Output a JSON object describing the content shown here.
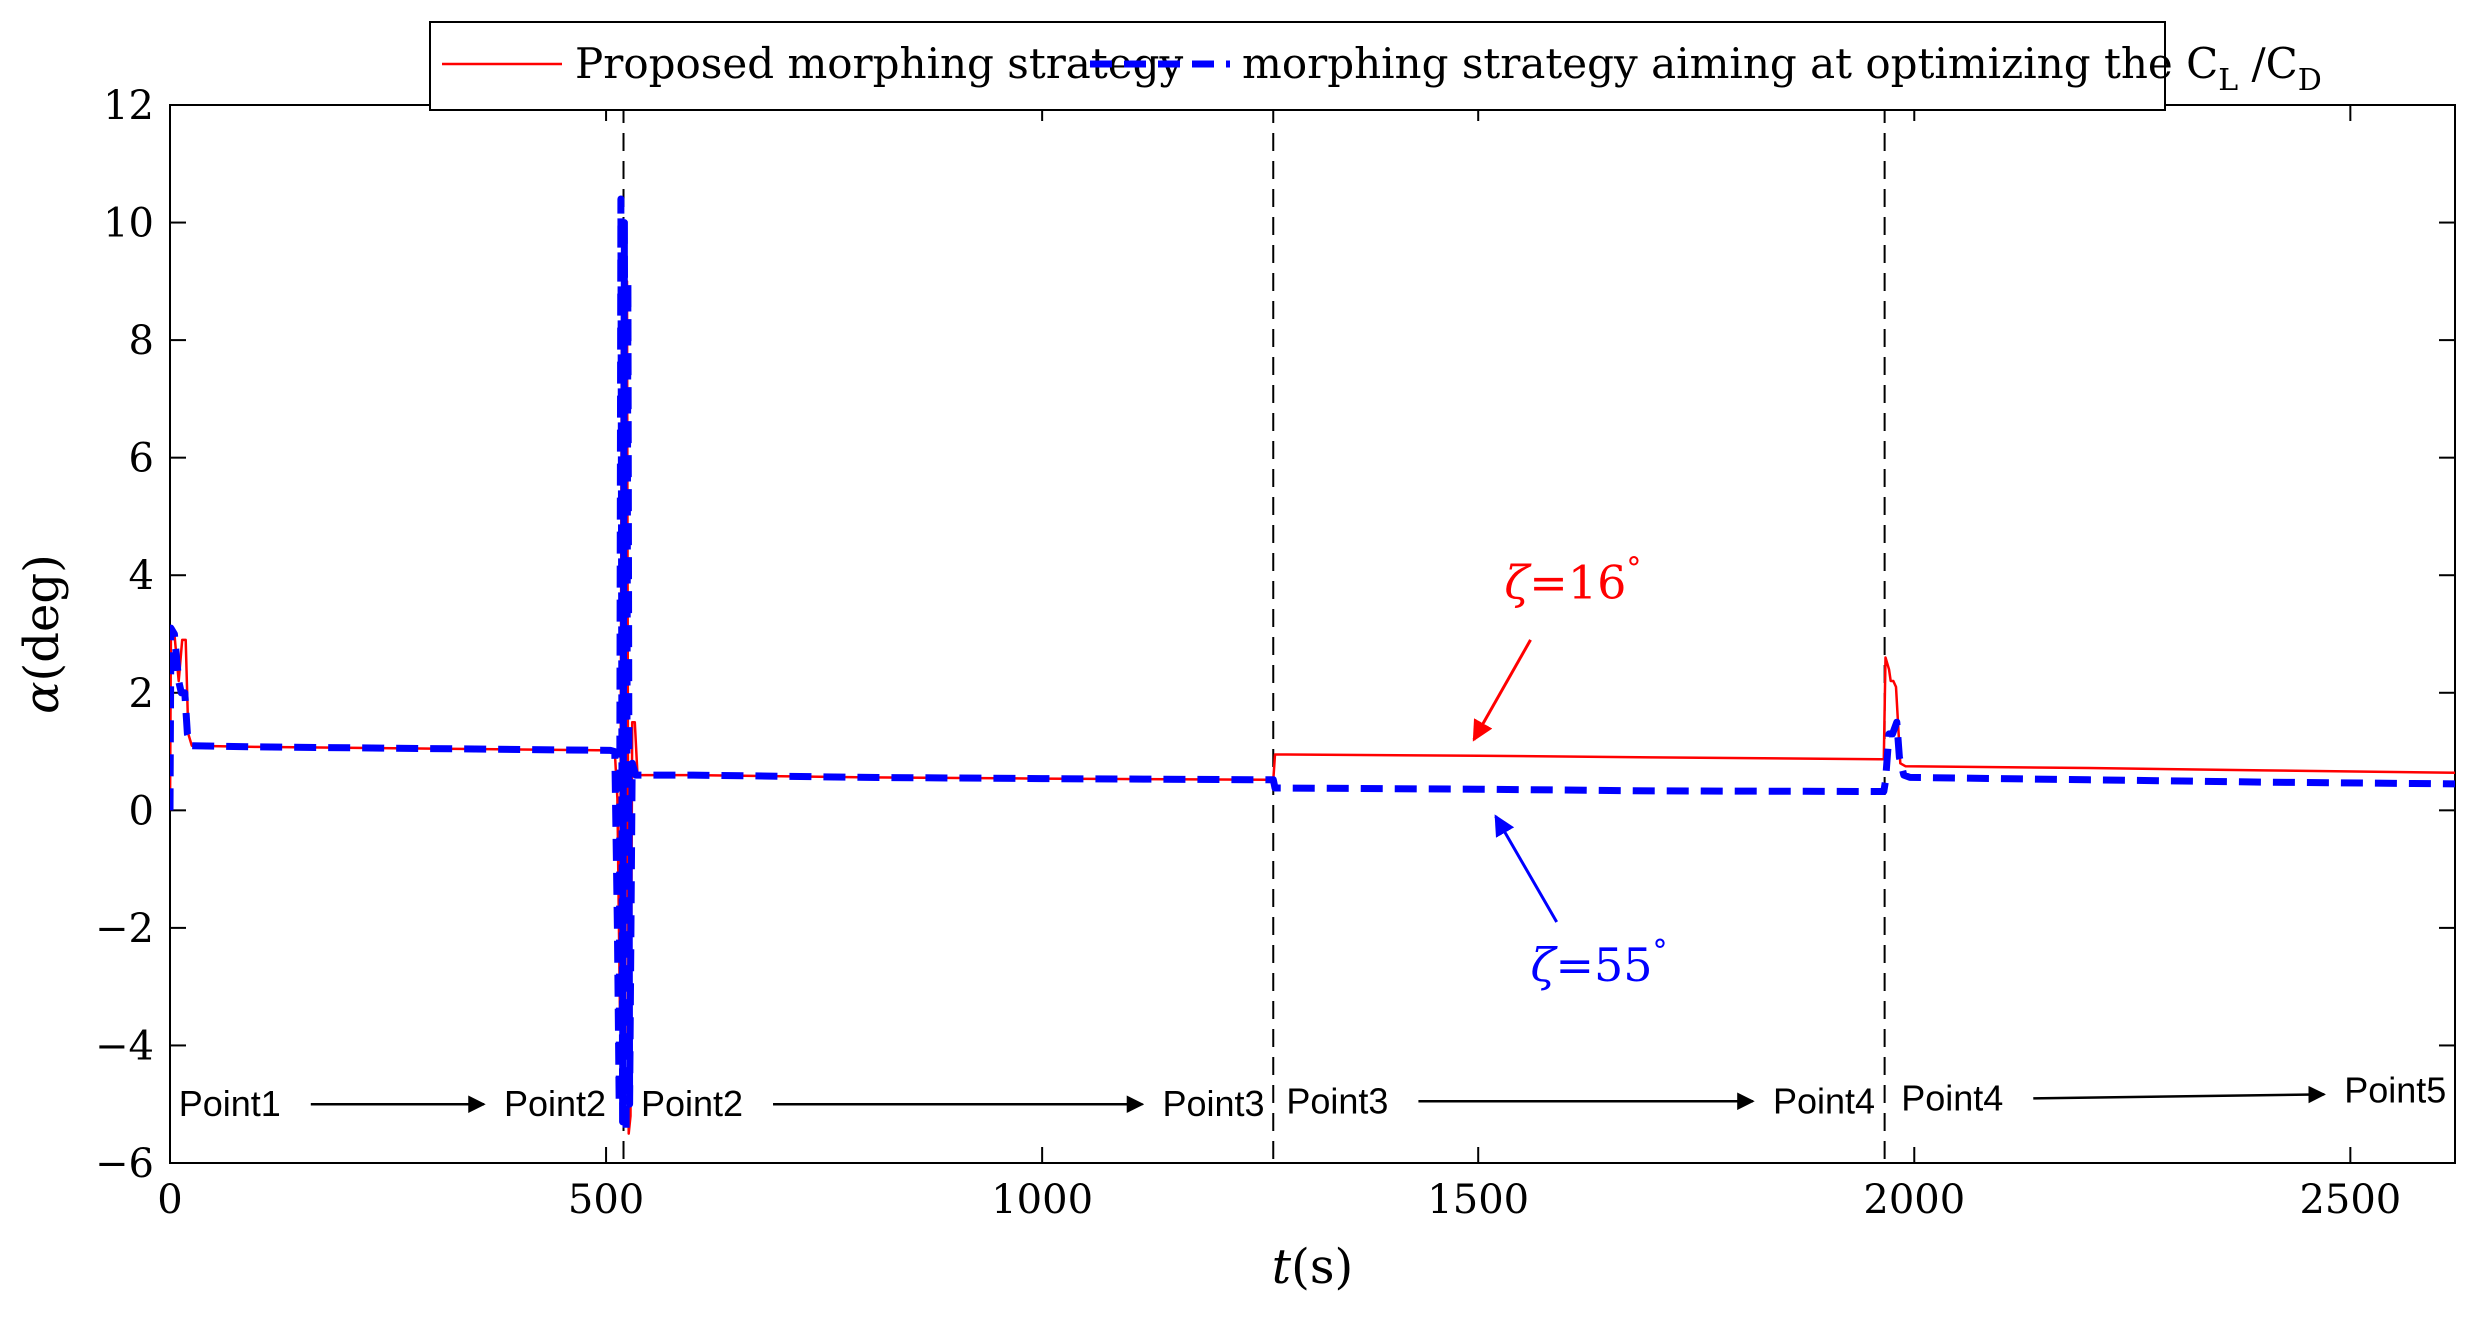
{
  "chart_data": {
    "type": "line",
    "xlabel_var": "t",
    "xlabel_unit": "(s)",
    "ylabel_var": "α",
    "ylabel_unit": "(deg)",
    "xlim": [
      0,
      2620
    ],
    "ylim": [
      -6,
      12
    ],
    "xticks": [
      0,
      500,
      1000,
      1500,
      2000,
      2500
    ],
    "yticks": [
      -6,
      -4,
      -2,
      0,
      2,
      4,
      6,
      8,
      10,
      12
    ],
    "ytick_labels": [
      "−6",
      "−4",
      "−2",
      "0",
      "2",
      "4",
      "6",
      "8",
      "10",
      "12"
    ],
    "grid": false,
    "legend_position": "top-center",
    "series": [
      {
        "name": "Proposed morphing strategy",
        "color": "#ff0000",
        "style": "solid",
        "points": [
          [
            0,
            0
          ],
          [
            1,
            2.9
          ],
          [
            5,
            3.0
          ],
          [
            10,
            2.2
          ],
          [
            14,
            2.9
          ],
          [
            18,
            2.9
          ],
          [
            21,
            1.3
          ],
          [
            25,
            1.1
          ],
          [
            100,
            1.08
          ],
          [
            300,
            1.05
          ],
          [
            505,
            1.02
          ],
          [
            510,
            1.0
          ],
          [
            513,
            0.2
          ],
          [
            516,
            -3.5
          ],
          [
            518,
            8.0
          ],
          [
            520,
            10.0
          ],
          [
            522,
            -4.0
          ],
          [
            524,
            9.0
          ],
          [
            526,
            -5.5
          ],
          [
            528,
            -5.2
          ],
          [
            530,
            1.5
          ],
          [
            533,
            1.5
          ],
          [
            536,
            0.6
          ],
          [
            600,
            0.6
          ],
          [
            800,
            0.56
          ],
          [
            1000,
            0.54
          ],
          [
            1260,
            0.52
          ],
          [
            1265,
            0.52
          ],
          [
            1267,
            0.95
          ],
          [
            1280,
            0.95
          ],
          [
            1500,
            0.93
          ],
          [
            1700,
            0.9
          ],
          [
            1960,
            0.87
          ],
          [
            1965,
            0.87
          ],
          [
            1967,
            2.6
          ],
          [
            1971,
            2.4
          ],
          [
            1973,
            2.2
          ],
          [
            1976,
            2.2
          ],
          [
            1979,
            2.1
          ],
          [
            1984,
            0.8
          ],
          [
            1990,
            0.75
          ],
          [
            2200,
            0.72
          ],
          [
            2400,
            0.68
          ],
          [
            2620,
            0.64
          ]
        ]
      },
      {
        "name": "morphing strategy aiming at optimizing the C_L/C_D",
        "color": "#0000ff",
        "style": "dashed",
        "points": [
          [
            0,
            0
          ],
          [
            1,
            3.1
          ],
          [
            5,
            3.0
          ],
          [
            10,
            2.2
          ],
          [
            13,
            2.0
          ],
          [
            17,
            2.0
          ],
          [
            20,
            1.3
          ],
          [
            25,
            1.1
          ],
          [
            100,
            1.08
          ],
          [
            300,
            1.05
          ],
          [
            505,
            1.02
          ],
          [
            510,
            1.0
          ],
          [
            513,
            -2.0
          ],
          [
            515,
            -5.0
          ],
          [
            517,
            10.4
          ],
          [
            519,
            -5.3
          ],
          [
            521,
            10.0
          ],
          [
            523,
            -5.5
          ],
          [
            525,
            9.0
          ],
          [
            527,
            -5.0
          ],
          [
            530,
            0.8
          ],
          [
            534,
            0.6
          ],
          [
            600,
            0.6
          ],
          [
            800,
            0.56
          ],
          [
            1000,
            0.54
          ],
          [
            1260,
            0.52
          ],
          [
            1265,
            0.52
          ],
          [
            1267,
            0.38
          ],
          [
            1500,
            0.36
          ],
          [
            1700,
            0.33
          ],
          [
            1960,
            0.32
          ],
          [
            1965,
            0.32
          ],
          [
            1967,
            0.5
          ],
          [
            1971,
            1.3
          ],
          [
            1975,
            1.3
          ],
          [
            1980,
            1.5
          ],
          [
            1983,
            0.9
          ],
          [
            1988,
            0.6
          ],
          [
            1995,
            0.56
          ],
          [
            2200,
            0.52
          ],
          [
            2400,
            0.48
          ],
          [
            2620,
            0.45
          ]
        ]
      }
    ],
    "vlines": [
      520,
      1265,
      1966
    ],
    "phase_labels": [
      {
        "from": "Point1",
        "to": "Point2",
        "x0": 10,
        "x1": 500,
        "y": -5.0
      },
      {
        "from": "Point2",
        "to": "Point3",
        "x0": 540,
        "x1": 1255,
        "y": -5.0
      },
      {
        "from": "Point3",
        "to": "Point4",
        "x0": 1280,
        "x1": 1955,
        "y": -4.95
      },
      {
        "from": "Point4",
        "to": "Point5",
        "x0": 1985,
        "x1": 2610,
        "y": -4.9
      }
    ],
    "annotations": [
      {
        "id": "zeta16",
        "var": "ζ",
        "text": "=16",
        "deg": "°",
        "color": "#ff0000",
        "text_at": [
          1530,
          3.6
        ],
        "arrow_from": [
          1560,
          2.9
        ],
        "arrow_to": [
          1495,
          1.2
        ]
      },
      {
        "id": "zeta55",
        "var": "ζ",
        "text": "=55",
        "deg": "°",
        "color": "#0000ff",
        "text_at": [
          1560,
          -2.9
        ],
        "arrow_from": [
          1590,
          -1.9
        ],
        "arrow_to": [
          1520,
          -0.1
        ]
      }
    ]
  }
}
